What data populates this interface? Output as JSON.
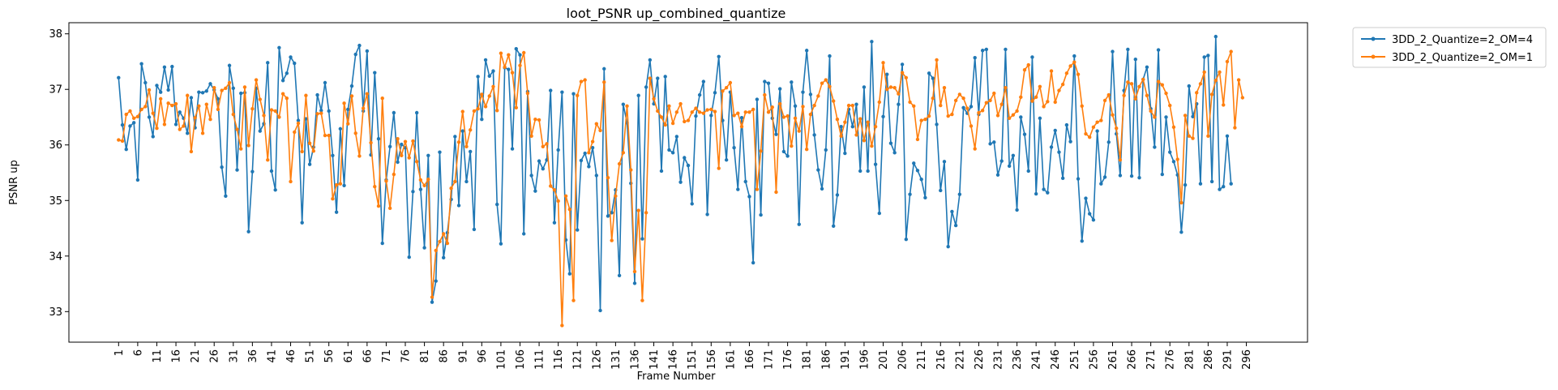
{
  "chart_data": {
    "type": "line",
    "title": "loot_PSNR up_combined_quantize",
    "xlabel": "Frame Number",
    "ylabel": "PSNR up",
    "xlim": [
      -12,
      312
    ],
    "ylim": [
      32.45,
      38.2
    ],
    "yticks": [
      33,
      34,
      35,
      36,
      37,
      38
    ],
    "xtick_start": 1,
    "xtick_step": 5,
    "xtick_end": 296,
    "grid": false,
    "legend_position": "outside-top-right",
    "series": [
      {
        "name": "3DD_2_Quantize=2_OM=4",
        "color": "#1f77b4",
        "marker": "circle",
        "values": [
          37.21,
          36.36,
          35.92,
          36.34,
          36.4,
          35.37,
          37.46,
          37.12,
          36.5,
          36.15,
          37.07,
          36.95,
          37.4,
          36.99,
          37.41,
          36.37,
          36.59,
          36.48,
          36.21,
          36.85,
          36.31,
          36.95,
          36.94,
          36.97,
          37.1,
          36.99,
          36.83,
          35.6,
          35.08,
          37.43,
          37.02,
          35.55,
          36.93,
          36.94,
          34.44,
          35.52,
          37.02,
          36.25,
          36.38,
          37.48,
          35.53,
          35.19,
          37.75,
          37.16,
          37.29,
          37.58,
          37.47,
          36.44,
          34.6,
          36.47,
          35.65,
          35.96,
          36.9,
          36.62,
          37.12,
          36.61,
          35.81,
          34.79,
          36.29,
          35.27,
          36.64,
          37.06,
          37.63,
          37.79,
          36.61,
          37.69,
          35.82,
          37.3,
          36.11,
          34.23,
          35.37,
          35.97,
          36.58,
          35.69,
          36.01,
          35.95,
          33.98,
          35.16,
          36.58,
          35.2,
          34.15,
          35.81,
          33.17,
          33.55,
          35.87,
          33.97,
          34.42,
          35.02,
          36.15,
          34.91,
          36.25,
          35.34,
          35.88,
          34.48,
          37.23,
          36.46,
          37.53,
          37.24,
          37.33,
          34.93,
          34.22,
          37.39,
          37.36,
          35.93,
          37.73,
          37.62,
          34.4,
          36.96,
          35.45,
          35.17,
          35.71,
          35.57,
          35.73,
          36.98,
          34.6,
          35.91,
          36.95,
          34.29,
          33.68,
          36.92,
          34.47,
          35.72,
          35.85,
          35.61,
          35.95,
          35.45,
          33.02,
          37.37,
          34.72,
          34.78,
          35.19,
          33.65,
          36.73,
          36.4,
          35.31,
          33.51,
          36.89,
          34.31,
          37.04,
          37.53,
          36.74,
          37.2,
          35.53,
          37.23,
          35.91,
          35.86,
          36.15,
          35.33,
          35.77,
          35.63,
          34.94,
          36.52,
          36.9,
          37.14,
          34.75,
          36.53,
          36.94,
          37.59,
          36.44,
          35.73,
          36.95,
          35.95,
          35.2,
          36.49,
          35.34,
          35.07,
          33.88,
          36.82,
          34.74,
          37.14,
          37.11,
          36.48,
          36.19,
          37.01,
          35.88,
          35.8,
          37.13,
          36.7,
          34.57,
          36.95,
          37.7,
          36.91,
          36.18,
          35.55,
          35.21,
          35.91,
          37.6,
          34.54,
          35.1,
          36.33,
          35.85,
          36.64,
          36.33,
          36.73,
          35.53,
          37.04,
          35.53,
          37.86,
          35.65,
          34.77,
          36.51,
          37.27,
          36.03,
          35.86,
          36.73,
          37.45,
          34.3,
          35.11,
          35.67,
          35.54,
          35.38,
          35.05,
          37.29,
          37.2,
          36.37,
          35.18,
          35.7,
          34.17,
          34.8,
          34.55,
          35.11,
          36.67,
          36.57,
          36.69,
          37.57,
          36.55,
          37.7,
          37.72,
          36.02,
          36.05,
          35.46,
          35.71,
          37.72,
          35.62,
          35.81,
          34.83,
          36.5,
          36.19,
          35.53,
          37.58,
          35.12,
          36.48,
          35.2,
          35.14,
          35.96,
          36.26,
          35.87,
          35.4,
          36.36,
          36.06,
          37.6,
          35.39,
          34.27,
          35.04,
          34.76,
          34.65,
          36.25,
          35.3,
          35.42,
          36.05,
          37.68,
          36.2,
          35.45,
          36.98,
          37.72,
          35.44,
          37.54,
          35.41,
          37.18,
          37.4,
          36.65,
          35.96,
          37.71,
          35.47,
          36.5,
          35.87,
          35.7,
          35.46,
          34.43,
          35.28,
          37.06,
          36.51,
          36.74,
          35.3,
          37.58,
          37.61,
          35.34,
          37.95,
          35.2,
          35.25,
          36.16,
          35.3
        ]
      },
      {
        "name": "3DD_2_Quantize=2_OM=1",
        "color": "#ff7f0e",
        "marker": "circle",
        "values": [
          36.09,
          36.07,
          36.55,
          36.61,
          36.48,
          36.51,
          36.64,
          36.69,
          36.99,
          36.57,
          36.3,
          36.83,
          36.37,
          36.75,
          36.71,
          36.74,
          36.28,
          36.34,
          36.89,
          35.88,
          36.49,
          36.7,
          36.21,
          36.73,
          36.46,
          37.03,
          36.64,
          36.98,
          37.02,
          37.12,
          36.55,
          36.28,
          35.93,
          37.04,
          35.99,
          36.65,
          37.17,
          36.82,
          36.53,
          35.73,
          36.63,
          36.61,
          36.5,
          36.92,
          36.84,
          35.34,
          36.23,
          36.39,
          35.88,
          36.89,
          36.03,
          35.89,
          36.56,
          36.57,
          36.17,
          36.17,
          35.03,
          35.28,
          35.3,
          36.75,
          36.38,
          36.88,
          36.21,
          35.8,
          36.66,
          36.92,
          36.04,
          35.25,
          34.9,
          36.84,
          35.35,
          34.86,
          35.47,
          36.11,
          35.81,
          36.06,
          35.77,
          36.07,
          35.7,
          35.37,
          35.27,
          35.38,
          33.26,
          34.1,
          34.26,
          34.4,
          34.23,
          35.22,
          35.34,
          36.05,
          36.6,
          35.97,
          36.27,
          36.61,
          36.65,
          36.91,
          36.69,
          36.88,
          37.05,
          36.62,
          37.65,
          37.4,
          37.62,
          37.3,
          36.67,
          37.43,
          37.66,
          36.93,
          36.16,
          36.46,
          36.45,
          35.97,
          36.02,
          35.26,
          35.19,
          34.99,
          32.75,
          35.08,
          34.84,
          33.2,
          36.89,
          37.14,
          37.17,
          35.86,
          36.06,
          36.38,
          36.26,
          37.13,
          35.41,
          34.28,
          35.08,
          35.66,
          35.86,
          36.7,
          35.55,
          33.72,
          34.82,
          33.2,
          34.78,
          37.2,
          36.83,
          36.61,
          36.5,
          36.36,
          36.7,
          36.39,
          36.59,
          36.74,
          36.42,
          36.44,
          36.59,
          36.66,
          36.59,
          36.57,
          36.63,
          36.64,
          36.6,
          35.58,
          36.97,
          37.03,
          37.12,
          36.53,
          36.57,
          36.33,
          36.59,
          36.59,
          36.64,
          35.2,
          35.89,
          36.9,
          36.59,
          36.68,
          35.15,
          36.74,
          36.5,
          36.52,
          35.98,
          36.48,
          36.25,
          36.69,
          35.92,
          36.55,
          36.71,
          36.88,
          37.11,
          37.17,
          37.05,
          36.79,
          36.46,
          36.16,
          36.41,
          36.71,
          36.71,
          36.18,
          36.47,
          36.08,
          36.41,
          35.98,
          36.33,
          36.77,
          37.48,
          37.0,
          37.04,
          37.03,
          36.92,
          37.3,
          37.21,
          36.77,
          36.7,
          36.1,
          36.44,
          36.46,
          36.52,
          36.84,
          37.53,
          36.71,
          37.03,
          36.52,
          36.55,
          36.8,
          36.91,
          36.84,
          36.66,
          36.34,
          35.93,
          36.58,
          36.62,
          36.76,
          36.8,
          36.93,
          36.53,
          36.73,
          37.03,
          36.48,
          36.54,
          36.61,
          36.86,
          37.35,
          37.44,
          36.79,
          36.86,
          37.05,
          36.69,
          36.78,
          37.33,
          36.77,
          36.98,
          37.09,
          37.29,
          37.42,
          37.49,
          37.27,
          36.7,
          36.2,
          36.14,
          36.32,
          36.41,
          36.44,
          36.8,
          36.9,
          36.54,
          36.3,
          35.73,
          36.89,
          37.13,
          37.1,
          36.83,
          37.05,
          37.18,
          36.89,
          36.61,
          36.5,
          37.14,
          37.08,
          36.93,
          36.71,
          36.32,
          35.74,
          34.96,
          36.53,
          36.16,
          36.12,
          36.94,
          37.1,
          37.31,
          36.16,
          36.91,
          37.16,
          37.31,
          36.72,
          37.5,
          37.68,
          36.31,
          37.17,
          36.85
        ]
      }
    ]
  }
}
